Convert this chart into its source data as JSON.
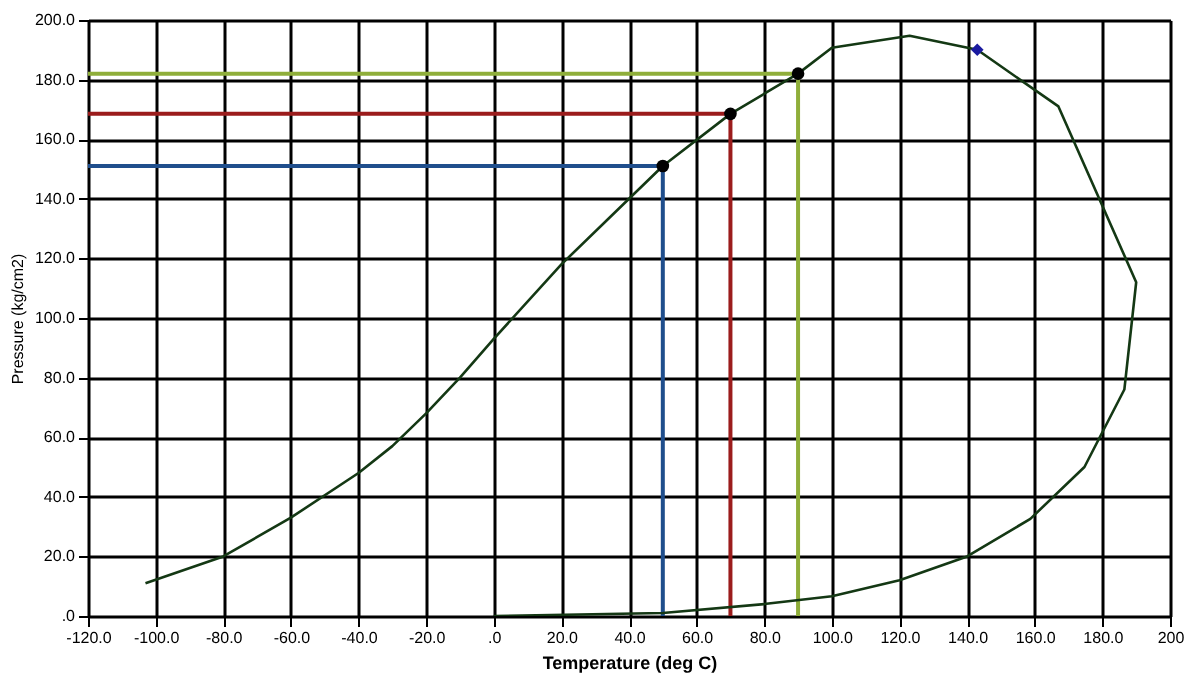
{
  "chart_data": {
    "type": "line",
    "xlabel": "Temperature (deg C)",
    "ylabel": "Pressure (kg/cm2)",
    "xlim": [
      -120,
      200
    ],
    "ylim": [
      0,
      200
    ],
    "xticks": [
      {
        "value": -120,
        "label": "-120.0"
      },
      {
        "value": -100,
        "label": "-100.0"
      },
      {
        "value": -80,
        "label": "-80.0"
      },
      {
        "value": -60,
        "label": "-60.0"
      },
      {
        "value": -40,
        "label": "-40.0"
      },
      {
        "value": -20,
        "label": "-20.0"
      },
      {
        "value": 0,
        "label": ".0"
      },
      {
        "value": 20,
        "label": "20.0"
      },
      {
        "value": 40,
        "label": "40.0"
      },
      {
        "value": 60,
        "label": "60.0"
      },
      {
        "value": 80,
        "label": "80.0"
      },
      {
        "value": 100,
        "label": "100.0"
      },
      {
        "value": 120,
        "label": "120.0"
      },
      {
        "value": 140,
        "label": "140.0"
      },
      {
        "value": 160,
        "label": "160.0"
      },
      {
        "value": 180,
        "label": "180.0"
      },
      200
    ],
    "yticks": [
      {
        "value": 0,
        "label": ".0"
      },
      {
        "value": 20,
        "label": "20.0"
      },
      {
        "value": 40,
        "label": "40.0"
      },
      {
        "value": 60,
        "label": "60.0"
      },
      {
        "value": 80,
        "label": "80.0"
      },
      {
        "value": 100,
        "label": "100.0"
      },
      {
        "value": 120,
        "label": "120.0"
      },
      {
        "value": 140,
        "label": "140.0"
      },
      {
        "value": 160,
        "label": "160.0"
      },
      {
        "value": 180,
        "label": "180.0"
      },
      {
        "value": 200,
        "label": "200.0"
      }
    ],
    "grid": true,
    "line_style": "solid",
    "series": [
      {
        "color": "#1f4e8c",
        "x": [
          -120,
          50,
          50
        ],
        "values": [
          151,
          151,
          0
        ]
      },
      {
        "color": "#9b1c1c",
        "x": [
          -120,
          70,
          70
        ],
        "values": [
          168.5,
          168.5,
          0
        ]
      },
      {
        "color": "#8fae3a",
        "x": [
          -120,
          90,
          90
        ],
        "values": [
          182,
          182,
          0
        ]
      },
      {
        "color": "#143814",
        "x": [
          -103,
          -80,
          -60,
          -40,
          -30,
          -20,
          -10,
          0,
          20,
          40,
          50,
          70,
          90,
          100,
          123,
          143,
          167,
          190,
          186.5,
          174.7,
          158.7,
          140,
          120,
          100,
          80,
          50,
          0
        ],
        "values": [
          11,
          20,
          33,
          48,
          57,
          68,
          80,
          93,
          118,
          140,
          151,
          168.5,
          182,
          190.7,
          194.7,
          190,
          171,
          112,
          76,
          50,
          32.6,
          20,
          12,
          6.6,
          4,
          1,
          0
        ]
      },
      {
        "type": "scatter",
        "marker": "circle",
        "color": "#000000",
        "x": [
          50,
          70,
          90
        ],
        "values": [
          151,
          168.5,
          182
        ]
      },
      {
        "type": "scatter",
        "marker": "diamond",
        "color": "#1a1aa0",
        "x": [
          143
        ],
        "values": [
          190
        ]
      }
    ]
  }
}
